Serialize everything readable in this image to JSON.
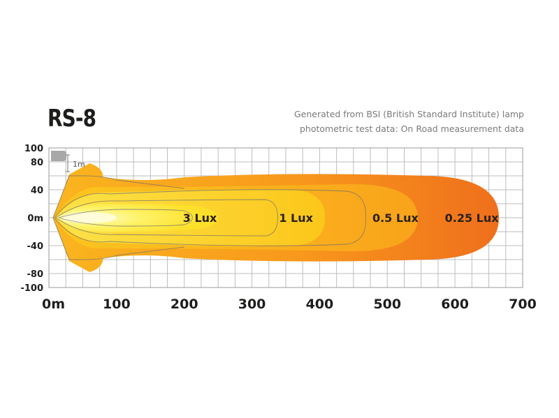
{
  "title": "RS-8",
  "note": {
    "line1": "Generated from BSI (British Standard Institute) lamp",
    "line2": "photometric test data: On Road measurement data"
  },
  "chart_data": {
    "type": "area",
    "title": "RS-8",
    "x_ticks": [
      {
        "value": 0,
        "label": "0m"
      },
      {
        "value": 100,
        "label": "100"
      },
      {
        "value": 200,
        "label": "200"
      },
      {
        "value": 300,
        "label": "300"
      },
      {
        "value": 400,
        "label": "400"
      },
      {
        "value": 500,
        "label": "500"
      },
      {
        "value": 600,
        "label": "600"
      },
      {
        "value": 700,
        "label": "700"
      }
    ],
    "y_ticks": [
      {
        "value": 100,
        "label": "100"
      },
      {
        "value": 80,
        "label": "80"
      },
      {
        "value": 40,
        "label": "40"
      },
      {
        "value": 0,
        "label": "0m"
      },
      {
        "value": -40,
        "label": "-40"
      },
      {
        "value": -80,
        "label": "-80"
      },
      {
        "value": -100,
        "label": "-100"
      }
    ],
    "xlim": [
      0,
      700
    ],
    "ylim": [
      -100,
      100
    ],
    "grid": true,
    "scale_marker": {
      "label": "1m"
    },
    "series": [
      {
        "name": "0.25 Lux",
        "reach": 665,
        "color": "#f07c1c"
      },
      {
        "name": "0.5 Lux",
        "reach": 545,
        "color": "#f9a21a"
      },
      {
        "name": "1 Lux",
        "reach": 408,
        "color": "#fbbd16"
      },
      {
        "name": "3 Lux",
        "reach": 250,
        "color": "#fde01a"
      }
    ]
  }
}
